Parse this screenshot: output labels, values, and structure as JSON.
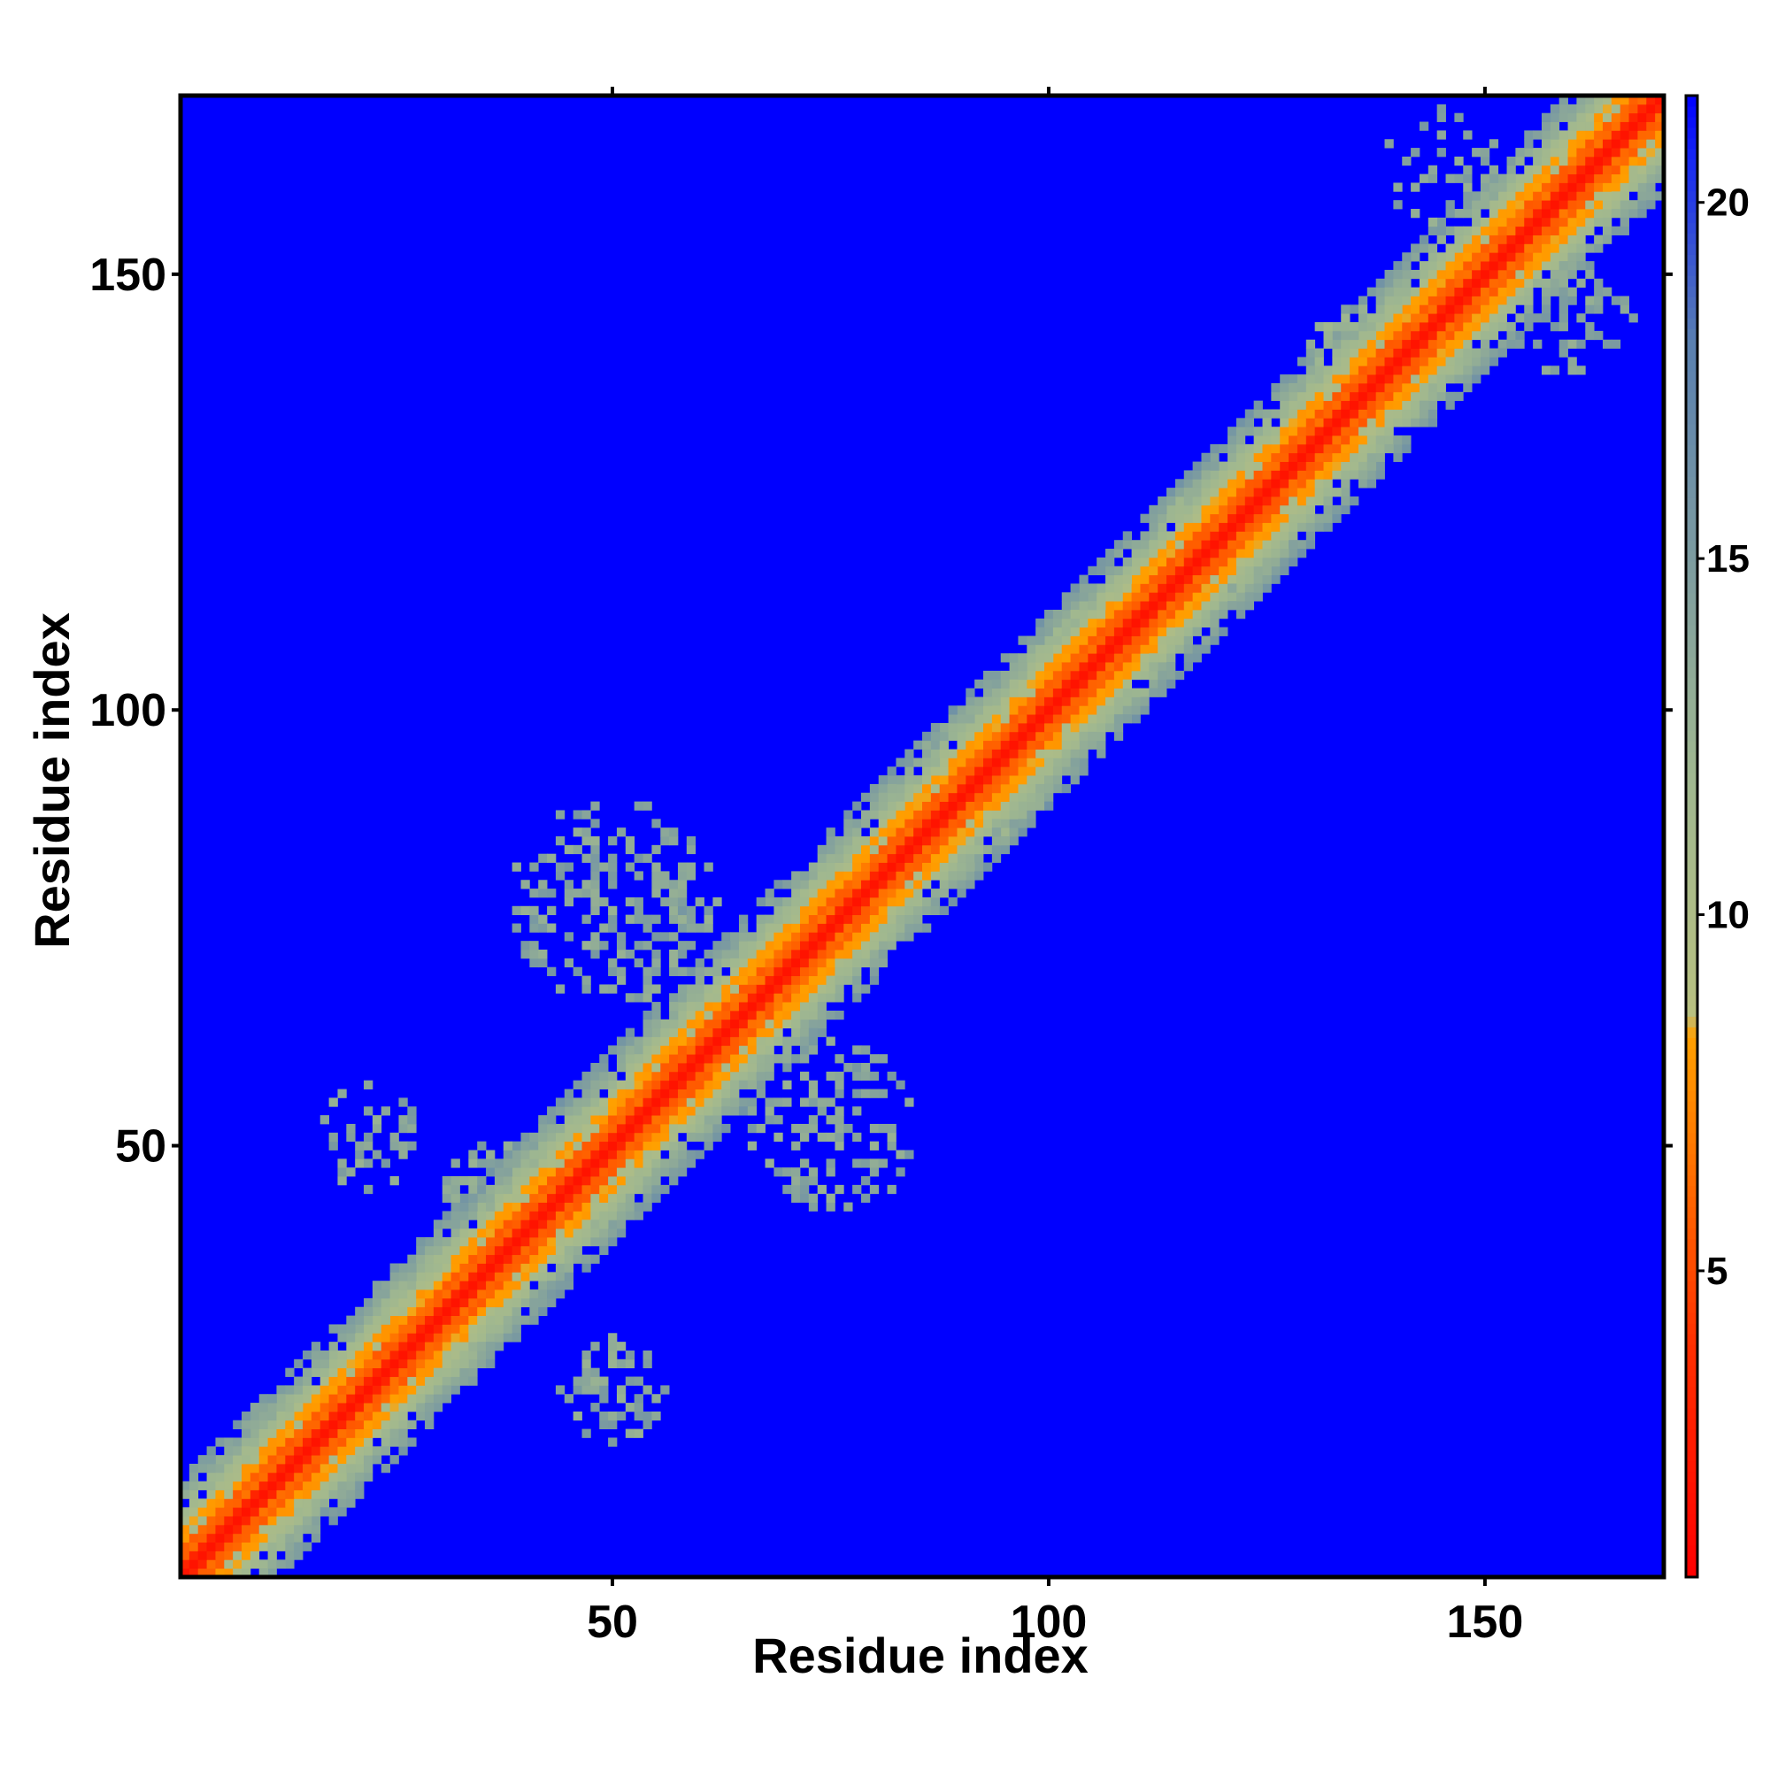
{
  "chart_data": {
    "type": "heatmap",
    "title": "",
    "xlabel": "Residue index",
    "ylabel": "Residue index",
    "x_range": [
      1,
      170
    ],
    "y_range": [
      1,
      170
    ],
    "x_ticks": [
      50,
      100,
      150
    ],
    "y_ticks": [
      50,
      100,
      150
    ],
    "colorbar": {
      "range": [
        0.7,
        21.5
      ],
      "ticks": [
        5,
        10,
        15,
        20
      ],
      "stops": [
        {
          "value": 0.7,
          "color": "#ff0000"
        },
        {
          "value": 4.0,
          "color": "#ff3000"
        },
        {
          "value": 8.3,
          "color": "#ffa000"
        },
        {
          "value": 8.6,
          "color": "#b8c080"
        },
        {
          "value": 12.0,
          "color": "#9fb790"
        },
        {
          "value": 18.0,
          "color": "#5a80b0"
        },
        {
          "value": 20.5,
          "color": "#1a2cf0"
        },
        {
          "value": 21.5,
          "color": "#0000ff"
        }
      ]
    },
    "background_color": "#0000ff",
    "diagonal": {
      "value_on_diagonal": 2.0,
      "band_core_width": 2,
      "band_orange_width": 5,
      "band_green_width": 11
    },
    "contact_regions": [
      {
        "name": "n-term-fringe",
        "x_center": 15,
        "y_center": 15,
        "radius": 8,
        "value": 12.5,
        "density": 0.95
      },
      {
        "name": "cluster-22-51",
        "x_center": 22,
        "y_center": 51,
        "radius": 6,
        "value": 12.5,
        "density": 0.55
      },
      {
        "name": "cluster-50-22",
        "x_center": 50,
        "y_center": 22,
        "radius": 6,
        "value": 12.5,
        "density": 0.55
      },
      {
        "name": "cluster-42-80",
        "x_center": 50,
        "y_center": 78,
        "radius": 12,
        "value": 12.5,
        "density": 0.5
      },
      {
        "name": "cluster-75-50",
        "x_center": 75,
        "y_center": 52,
        "radius": 10,
        "value": 12.5,
        "density": 0.5
      },
      {
        "name": "cluster-40-45",
        "x_center": 38,
        "y_center": 43,
        "radius": 8,
        "value": 12.5,
        "density": 0.55
      },
      {
        "name": "cluster-145-160",
        "x_center": 145,
        "y_center": 162,
        "radius": 7,
        "value": 12.5,
        "density": 0.45
      },
      {
        "name": "cluster-160-145",
        "x_center": 160,
        "y_center": 145,
        "radius": 7,
        "value": 12.5,
        "density": 0.45
      },
      {
        "name": "cluster-130-140",
        "x_center": 137,
        "y_center": 139,
        "radius": 8,
        "value": 11.5,
        "density": 0.85
      },
      {
        "name": "cluster-92-92",
        "x_center": 92,
        "y_center": 92,
        "radius": 8,
        "value": 11.5,
        "density": 0.85
      },
      {
        "name": "cluster-105-105",
        "x_center": 105,
        "y_center": 105,
        "radius": 7,
        "value": 11.5,
        "density": 0.85
      },
      {
        "name": "cluster-118-118",
        "x_center": 118,
        "y_center": 118,
        "radius": 7,
        "value": 11.5,
        "density": 0.8
      }
    ]
  }
}
